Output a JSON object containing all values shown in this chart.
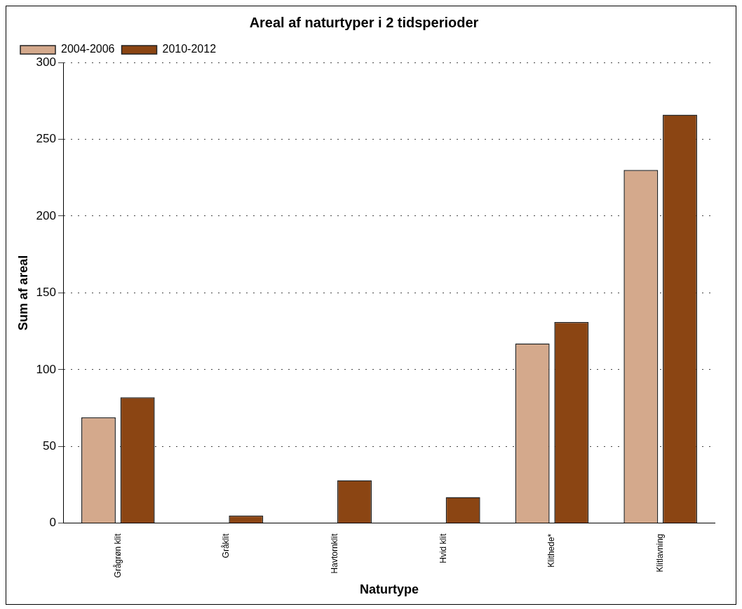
{
  "chart_data": {
    "type": "bar",
    "title": "Areal af naturtyper i 2 tidsperioder",
    "xlabel": "Naturtype",
    "ylabel": "Sum af areal",
    "categories": [
      "Grågrøn klit",
      "Gråklit",
      "Havtornklit",
      "Hvid klit",
      "Klithede*",
      "Klitlavning"
    ],
    "series": [
      {
        "name": "2004-2006",
        "color": "#d4a98c",
        "values": [
          69,
          null,
          null,
          null,
          117,
          230
        ]
      },
      {
        "name": "2010-2012",
        "color": "#8b4513",
        "values": [
          82,
          5,
          28,
          17,
          131,
          266
        ]
      }
    ],
    "ylim": [
      0,
      300
    ],
    "yticks": [
      0,
      50,
      100,
      150,
      200,
      250,
      300
    ],
    "grid": "y",
    "legend": "top left"
  }
}
